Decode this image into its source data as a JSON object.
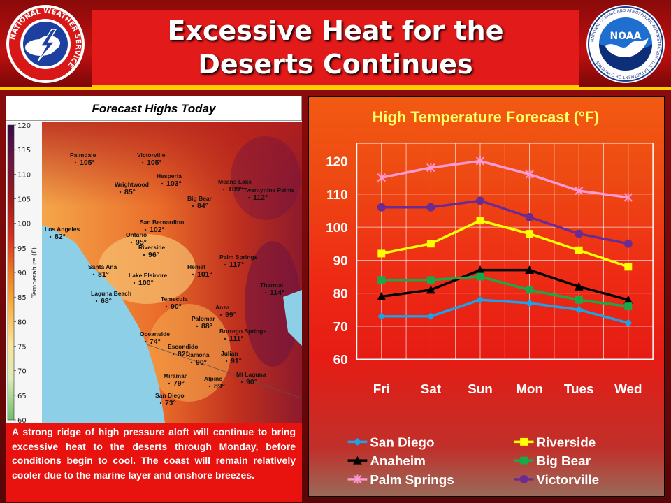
{
  "header": {
    "title_line1": "Excessive Heat for the",
    "title_line2": "Deserts Continues"
  },
  "logos": {
    "nws_text": "NATIONAL WEATHER SERVICE",
    "noaa_text": "NOAA",
    "noaa_ring": "NATIONAL OCEANIC AND ATMOSPHERIC ADMINISTRATION · U.S. DEPARTMENT OF COMMERCE"
  },
  "map": {
    "heading": "Forecast Highs Today",
    "legend_title": "Temperature (F)",
    "legend_ticks": [
      "120",
      "115",
      "110",
      "105",
      "100",
      "95",
      "90",
      "85",
      "80",
      "75",
      "70",
      "65",
      "60"
    ],
    "cities": [
      {
        "name": "Palmdale",
        "temp": "105°"
      },
      {
        "name": "Victorville",
        "temp": "105°"
      },
      {
        "name": "Hesperia",
        "temp": "103°"
      },
      {
        "name": "Wrightwood",
        "temp": "85°"
      },
      {
        "name": "Means Lake",
        "temp": "109°"
      },
      {
        "name": "Twentynine Palms",
        "temp": "112°"
      },
      {
        "name": "Big Bear",
        "temp": "84°"
      },
      {
        "name": "San Bernardino",
        "temp": "102°"
      },
      {
        "name": "Los Angeles",
        "temp": "82°"
      },
      {
        "name": "Ontario",
        "temp": "95°"
      },
      {
        "name": "Riverside",
        "temp": "96°"
      },
      {
        "name": "Palm Springs",
        "temp": "117°"
      },
      {
        "name": "Santa Ana",
        "temp": "81°"
      },
      {
        "name": "Hemet",
        "temp": "101°"
      },
      {
        "name": "Lake Elsinore",
        "temp": "100°"
      },
      {
        "name": "Thermal",
        "temp": "114°"
      },
      {
        "name": "Laguna Beach",
        "temp": "68°"
      },
      {
        "name": "Temecula",
        "temp": "90°"
      },
      {
        "name": "Anza",
        "temp": "99°"
      },
      {
        "name": "Palomar",
        "temp": "88°"
      },
      {
        "name": "Oceanside",
        "temp": "74°"
      },
      {
        "name": "Borrego Springs",
        "temp": "111°"
      },
      {
        "name": "Escondido",
        "temp": "82°"
      },
      {
        "name": "Ramona",
        "temp": "90°"
      },
      {
        "name": "Julian",
        "temp": "91°"
      },
      {
        "name": "Miramar",
        "temp": "79°"
      },
      {
        "name": "Alpine",
        "temp": "89°"
      },
      {
        "name": "Mt Laguna",
        "temp": "90°"
      },
      {
        "name": "San Diego",
        "temp": "73°"
      }
    ]
  },
  "description": "A strong ridge of high pressure aloft will continue to bring excessive heat to the deserts through Monday, before conditions begin to cool. The coast will remain relatively cooler due to the marine layer and onshore breezes.",
  "chart_data": {
    "type": "line",
    "title": "High Temperature Forecast (°F)",
    "categories": [
      "Fri",
      "Sat",
      "Sun",
      "Mon",
      "Tues",
      "Wed"
    ],
    "ylim": [
      60,
      120
    ],
    "yticks": [
      120,
      110,
      100,
      90,
      80,
      70,
      60
    ],
    "grid": true,
    "legend_position": "bottom",
    "series": [
      {
        "name": "San Diego",
        "color": "#1aa3e8",
        "marker": "diamond",
        "values": [
          73,
          73,
          78,
          77,
          75,
          71
        ]
      },
      {
        "name": "Riverside",
        "color": "#ffff00",
        "marker": "square",
        "values": [
          92,
          95,
          102,
          98,
          93,
          88
        ]
      },
      {
        "name": "Anaheim",
        "color": "#000000",
        "marker": "triangle",
        "values": [
          79,
          81,
          87,
          87,
          82,
          78
        ]
      },
      {
        "name": "Big Bear",
        "color": "#1aa84a",
        "marker": "square",
        "values": [
          84,
          84,
          85,
          81,
          78,
          76
        ]
      },
      {
        "name": "Palm Springs",
        "color": "#ff9ad5",
        "marker": "star",
        "values": [
          115,
          118,
          120,
          116,
          111,
          109
        ]
      },
      {
        "name": "Victorville",
        "color": "#6a2c91",
        "marker": "circle",
        "values": [
          106,
          106,
          108,
          103,
          98,
          95
        ]
      }
    ]
  }
}
